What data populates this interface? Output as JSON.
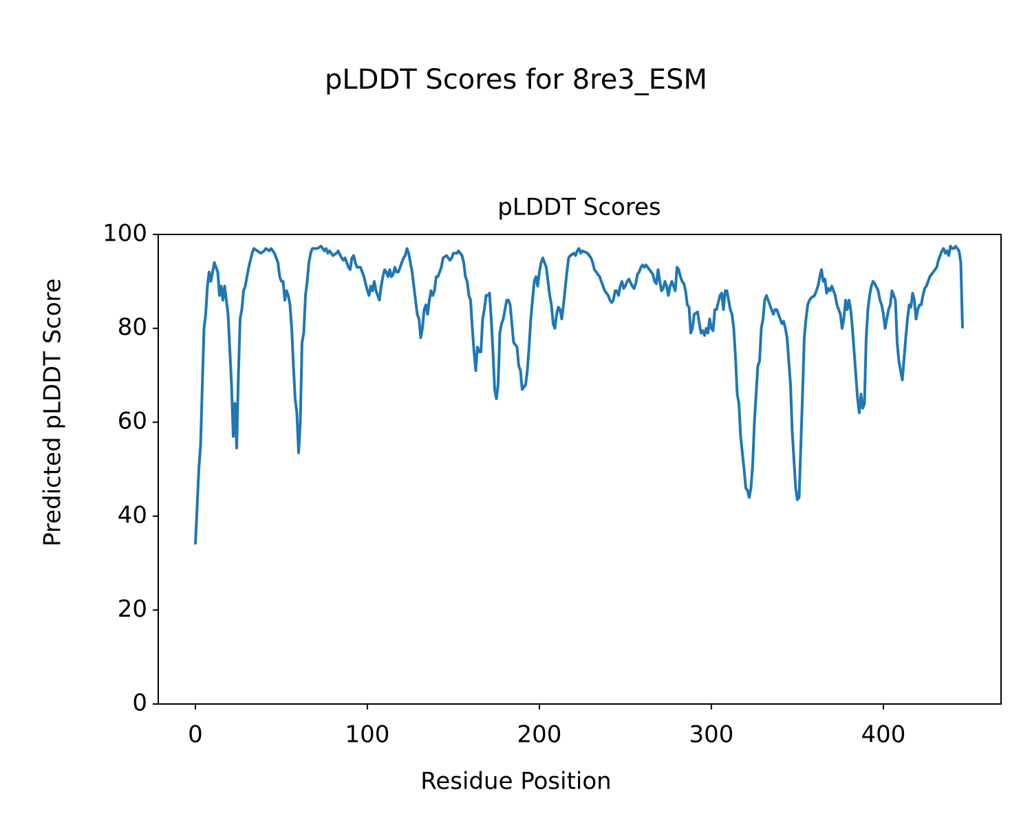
{
  "chart_data": {
    "type": "line",
    "title": "pLDDT Scores for 8re3_ESM",
    "subtitle": "pLDDT Scores",
    "x_label": "Residue Position",
    "y_label": "Predicted pLDDT Score",
    "color": "#1f77b4",
    "grid": false,
    "xlim": [
      -21.6,
      468.4
    ],
    "xticks": [
      0,
      100,
      200,
      300,
      400
    ],
    "ylim": [
      0,
      100
    ],
    "yticks": [
      0,
      20,
      40,
      60,
      80,
      100
    ],
    "x": [
      0,
      2,
      3,
      5,
      6,
      7,
      8,
      9,
      10,
      11,
      12,
      13,
      14,
      15,
      16,
      17,
      19,
      21,
      22,
      23,
      24,
      25,
      26,
      27,
      28,
      29,
      31,
      33,
      34,
      36,
      38,
      40,
      41,
      43,
      44,
      46,
      47,
      48,
      49,
      50,
      51,
      52,
      53,
      54,
      55,
      56,
      57,
      58,
      59,
      60,
      61,
      62,
      63,
      64,
      65,
      66,
      67,
      68,
      70,
      71,
      73,
      74,
      75,
      76,
      77,
      78,
      80,
      82,
      83,
      85,
      86,
      87,
      88,
      89,
      90,
      91,
      92,
      93,
      94,
      96,
      98,
      100,
      101,
      102,
      103,
      104,
      105,
      106,
      107,
      108,
      109,
      110,
      111,
      112,
      113,
      114,
      115,
      116,
      117,
      118,
      119,
      120,
      121,
      122,
      123,
      124,
      125,
      126,
      127,
      128,
      129,
      130,
      131,
      132,
      133,
      134,
      135,
      136,
      137,
      138,
      139,
      140,
      141,
      142,
      143,
      144,
      146,
      148,
      149,
      150,
      152,
      153,
      155,
      156,
      157,
      158,
      159,
      160,
      161,
      162,
      163,
      164,
      165,
      166,
      167,
      168,
      169,
      170,
      171,
      172,
      173,
      174,
      175,
      176,
      177,
      178,
      179,
      181,
      182,
      183,
      184,
      185,
      186,
      187,
      188,
      189,
      190,
      192,
      193,
      194,
      195,
      196,
      197,
      198,
      199,
      200,
      201,
      202,
      204,
      205,
      206,
      207,
      208,
      209,
      210,
      211,
      212,
      213,
      214,
      216,
      217,
      218,
      220,
      221,
      222,
      223,
      224,
      225,
      228,
      229,
      230,
      231,
      232,
      234,
      235,
      237,
      238,
      240,
      241,
      242,
      243,
      244,
      245,
      246,
      247,
      248,
      249,
      250,
      251,
      252,
      254,
      255,
      256,
      257,
      258,
      259,
      260,
      261,
      262,
      265,
      266,
      267,
      268,
      269,
      270,
      271,
      272,
      273,
      274,
      275,
      276,
      277,
      279,
      280,
      281,
      282,
      283,
      284,
      285,
      286,
      287,
      288,
      289,
      290,
      292,
      293,
      294,
      295,
      296,
      297,
      298,
      299,
      300,
      301,
      302,
      303,
      305,
      306,
      307,
      308,
      309,
      310,
      311,
      312,
      313,
      314,
      315,
      316,
      317,
      319,
      320,
      321,
      322,
      323,
      324,
      325,
      327,
      328,
      329,
      330,
      331,
      332,
      334,
      335,
      336,
      337,
      338,
      339,
      341,
      342,
      343,
      344,
      345,
      346,
      347,
      349,
      350,
      351,
      352,
      353,
      354,
      355,
      356,
      357,
      358,
      360,
      361,
      362,
      363,
      364,
      365,
      366,
      367,
      368,
      369,
      370,
      372,
      373,
      374,
      375,
      376,
      377,
      378,
      379,
      380,
      381,
      382,
      383,
      384,
      385,
      386,
      387,
      388,
      389,
      390,
      391,
      392,
      393,
      394,
      395,
      397,
      398,
      399,
      400,
      401,
      402,
      403,
      404,
      405,
      406,
      407,
      408,
      409,
      410,
      411,
      413,
      414,
      415,
      416,
      417,
      418,
      419,
      420,
      421,
      422,
      423,
      424,
      425,
      426,
      427,
      428,
      429,
      431,
      432,
      433,
      434,
      435,
      436,
      437,
      438,
      439,
      440,
      441,
      442,
      443,
      444,
      445,
      446
    ],
    "values": [
      34,
      50,
      55,
      80,
      83,
      89,
      92,
      90,
      92,
      94,
      93,
      92,
      87,
      89,
      86,
      89,
      83,
      68,
      57,
      64,
      54.5,
      70,
      82,
      84,
      88,
      89,
      93,
      96,
      97,
      96.5,
      96,
      96.5,
      97,
      96.5,
      97,
      96,
      95,
      94,
      91,
      90,
      90,
      86,
      88,
      87,
      85,
      80,
      72,
      65,
      62,
      53.5,
      60,
      77,
      79,
      87,
      90,
      94,
      96,
      97,
      97,
      97,
      97.5,
      97,
      96.5,
      97,
      96,
      96.5,
      95.5,
      96,
      96.5,
      95,
      94.5,
      95,
      94,
      93,
      92.5,
      95,
      95.5,
      94,
      93,
      93,
      91,
      88,
      87,
      89,
      88,
      90,
      88,
      87,
      86,
      89,
      91,
      92.5,
      92,
      91,
      92.5,
      91,
      91.5,
      93,
      92,
      92,
      93,
      94,
      95,
      95.5,
      97,
      96,
      94,
      92,
      89,
      86,
      83,
      82,
      78,
      80,
      84,
      85,
      83,
      86,
      88,
      87,
      88,
      91,
      91,
      92,
      93,
      95,
      95.5,
      94.5,
      95,
      96,
      96,
      96.5,
      95.5,
      94,
      91,
      90,
      87,
      86,
      80,
      75,
      71,
      76,
      75,
      75,
      82,
      84,
      87,
      87,
      87.5,
      82,
      75,
      67,
      65,
      68,
      79,
      81,
      82,
      86,
      86,
      85,
      81,
      77,
      76.5,
      76,
      72,
      71,
      67,
      68,
      71,
      76,
      82,
      86,
      90,
      91,
      89,
      92,
      94,
      95,
      93,
      90,
      87,
      85,
      81,
      80,
      83,
      84.5,
      84,
      82,
      85,
      92,
      95,
      95.5,
      96,
      95.5,
      96.5,
      97,
      96,
      96.5,
      96,
      95.5,
      95,
      94,
      92.5,
      91.5,
      91,
      89,
      88,
      87,
      86,
      85.5,
      86,
      88,
      88,
      87,
      89,
      90,
      88.5,
      89,
      90,
      90.5,
      89,
      88.5,
      89.5,
      91.5,
      92,
      93,
      93.5,
      93,
      93.5,
      92,
      91.5,
      90,
      89.5,
      92.5,
      90,
      88,
      88.5,
      90,
      89,
      87,
      89,
      90,
      88,
      93,
      92.5,
      91,
      90,
      89.5,
      88,
      85,
      84.5,
      79,
      80,
      83,
      83.5,
      81,
      79,
      79.5,
      78.5,
      80,
      79,
      82,
      80,
      79.5,
      84,
      84,
      87,
      87.5,
      84,
      88,
      88,
      86,
      84,
      83,
      80,
      74,
      66,
      64,
      57,
      50,
      46,
      45.5,
      44,
      46,
      51,
      60,
      72,
      73,
      80,
      82,
      86,
      87,
      85,
      84,
      83,
      84,
      84,
      83,
      81,
      81.5,
      80,
      78,
      73,
      68,
      58,
      46,
      43.5,
      44,
      55,
      66,
      78,
      82,
      85,
      86,
      86.5,
      87,
      88,
      89,
      91,
      92.5,
      90,
      90.5,
      87.5,
      88.5,
      88,
      89,
      87,
      85,
      84,
      83,
      80,
      82,
      86,
      84,
      86,
      84,
      80,
      75,
      70,
      65,
      62,
      66,
      63,
      64,
      78,
      84,
      87,
      89,
      90,
      89.5,
      88,
      86,
      85,
      83,
      80,
      82,
      84,
      85,
      88,
      87,
      86,
      77,
      73,
      71,
      69,
      78,
      82,
      85,
      84.5,
      87.5,
      86,
      82,
      84,
      85,
      85,
      87,
      88.5,
      89,
      90,
      91,
      91.5,
      92,
      93,
      94.5,
      95.5,
      96.5,
      97,
      96,
      96.5,
      95.5,
      97.5,
      97,
      97,
      97.5,
      97,
      96.5,
      94,
      80
    ]
  }
}
